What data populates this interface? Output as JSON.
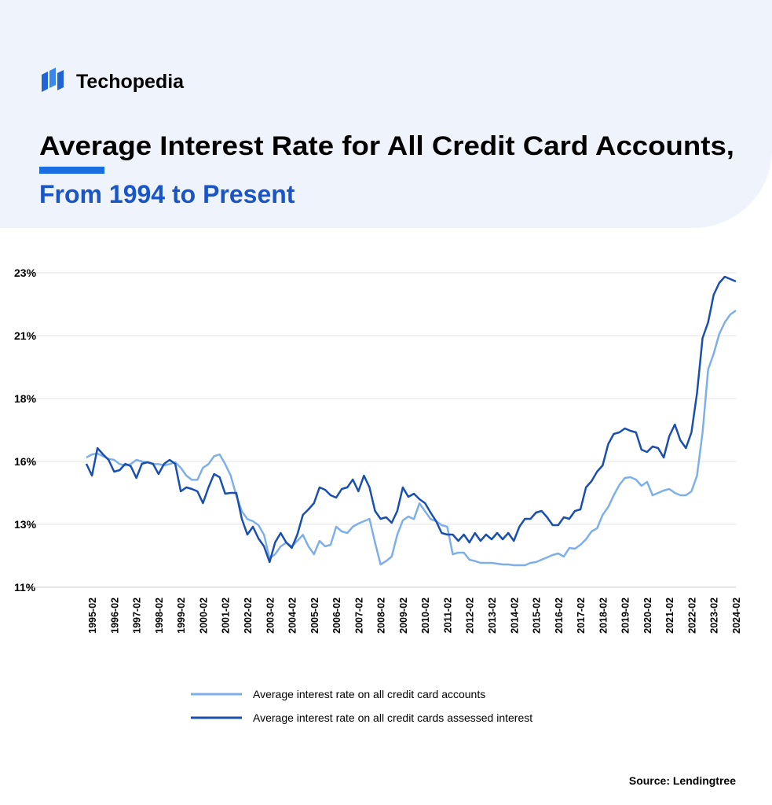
{
  "brand": "Techopedia",
  "chart_data": {
    "type": "line",
    "title": "Average Interest Rate for All Credit Card Accounts,",
    "subtitle": "From 1994 to Present",
    "source": "Source: Lendingtree",
    "categories": [
      null,
      "1995-02",
      null,
      null,
      null,
      "1996-02",
      null,
      null,
      null,
      "1997-02",
      null,
      null,
      null,
      "1998-02",
      null,
      null,
      null,
      "1999-02",
      null,
      null,
      null,
      "2000-02",
      null,
      null,
      null,
      "2001-02",
      null,
      null,
      null,
      "2002-02",
      null,
      null,
      null,
      "2003-02",
      null,
      null,
      null,
      "2004-02",
      null,
      null,
      null,
      "2005-02",
      null,
      null,
      null,
      "2006-02",
      null,
      null,
      null,
      "2007-02",
      null,
      null,
      null,
      "2008-02",
      null,
      null,
      null,
      "2009-02",
      null,
      null,
      null,
      "2010-02",
      null,
      null,
      null,
      "2011-02",
      null,
      null,
      null,
      "2012-02",
      null,
      null,
      null,
      "2013-02",
      null,
      null,
      null,
      "2014-02",
      null,
      null,
      null,
      "2015-02",
      null,
      null,
      null,
      "2016-02",
      null,
      null,
      null,
      "2017-02",
      null,
      null,
      null,
      "2018-02",
      null,
      null,
      null,
      "2019-02",
      null,
      null,
      null,
      "2020-02",
      null,
      null,
      null,
      "2021-02",
      null,
      null,
      null,
      "2022-02",
      null,
      null,
      null,
      "2023-02",
      null,
      null,
      null,
      "2024-02"
    ],
    "series": [
      {
        "name": "Average interest rate on all credit card accounts",
        "color": "#7eafe9",
        "values": [
          15.95,
          16.07,
          16.1,
          16.0,
          15.9,
          15.86,
          15.7,
          15.65,
          15.7,
          15.86,
          15.8,
          15.77,
          15.7,
          15.7,
          15.65,
          15.7,
          15.77,
          15.56,
          15.26,
          15.1,
          15.1,
          15.56,
          15.7,
          16.0,
          16.07,
          15.7,
          15.26,
          14.5,
          13.9,
          13.6,
          13.52,
          13.37,
          13.0,
          12.1,
          12.26,
          12.56,
          12.7,
          12.56,
          12.77,
          13.0,
          12.56,
          12.26,
          12.77,
          12.56,
          12.62,
          13.31,
          13.13,
          13.07,
          13.31,
          13.43,
          13.52,
          13.61,
          12.7,
          11.87,
          12.0,
          12.17,
          13.0,
          13.55,
          13.7,
          13.6,
          14.2,
          13.9,
          13.6,
          13.52,
          13.37,
          13.31,
          12.26,
          12.32,
          12.32,
          12.05,
          12.0,
          11.93,
          11.93,
          11.93,
          11.9,
          11.87,
          11.87,
          11.84,
          11.84,
          11.84,
          11.93,
          11.96,
          12.05,
          12.14,
          12.23,
          12.29,
          12.17,
          12.5,
          12.47,
          12.62,
          12.83,
          13.13,
          13.25,
          13.76,
          14.06,
          14.51,
          14.9,
          15.17,
          15.2,
          15.11,
          14.87,
          15.02,
          14.51,
          14.6,
          14.69,
          14.75,
          14.6,
          14.51,
          14.51,
          14.66,
          15.26,
          16.91,
          19.31,
          19.91,
          20.66,
          21.11,
          21.41,
          21.56
        ]
      },
      {
        "name": "Average interest rate on all credit cards assessed interest",
        "color": "#1a4fae",
        "values": [
          15.71,
          15.26,
          16.31,
          16.07,
          15.86,
          15.41,
          15.47,
          15.71,
          15.62,
          15.17,
          15.71,
          15.77,
          15.71,
          15.32,
          15.71,
          15.86,
          15.71,
          14.66,
          14.81,
          14.75,
          14.66,
          14.21,
          14.81,
          15.32,
          15.2,
          14.57,
          14.6,
          14.6,
          13.61,
          13.01,
          13.31,
          12.86,
          12.56,
          11.96,
          12.71,
          13.07,
          12.71,
          12.5,
          13.01,
          13.76,
          13.97,
          14.21,
          14.81,
          14.72,
          14.51,
          14.42,
          14.75,
          14.81,
          15.11,
          14.66,
          15.26,
          14.81,
          13.91,
          13.61,
          13.67,
          13.46,
          13.91,
          14.81,
          14.45,
          14.57,
          14.36,
          14.21,
          13.85,
          13.52,
          13.07,
          13.01,
          13.01,
          12.77,
          13.01,
          12.71,
          13.07,
          12.77,
          13.01,
          12.83,
          13.07,
          12.83,
          13.07,
          12.77,
          13.31,
          13.61,
          13.61,
          13.85,
          13.91,
          13.67,
          13.37,
          13.37,
          13.67,
          13.61,
          13.91,
          13.97,
          14.81,
          15.05,
          15.41,
          15.65,
          16.46,
          16.85,
          16.91,
          17.06,
          16.97,
          16.91,
          16.25,
          16.16,
          16.37,
          16.31,
          15.95,
          16.76,
          17.21,
          16.61,
          16.31,
          16.91,
          18.41,
          20.51,
          21.11,
          22.16,
          22.61,
          22.85,
          22.76,
          22.67
        ]
      }
    ],
    "ylim": [
      11,
      23
    ],
    "yticks": [
      {
        "value": 11,
        "label": "11%"
      },
      {
        "value": 13.4,
        "label": "13%"
      },
      {
        "value": 15.8,
        "label": "16%"
      },
      {
        "value": 18.2,
        "label": "18%"
      },
      {
        "value": 20.6,
        "label": "21%"
      },
      {
        "value": 23,
        "label": "23%"
      }
    ],
    "grid": true,
    "legend": "bottom"
  }
}
